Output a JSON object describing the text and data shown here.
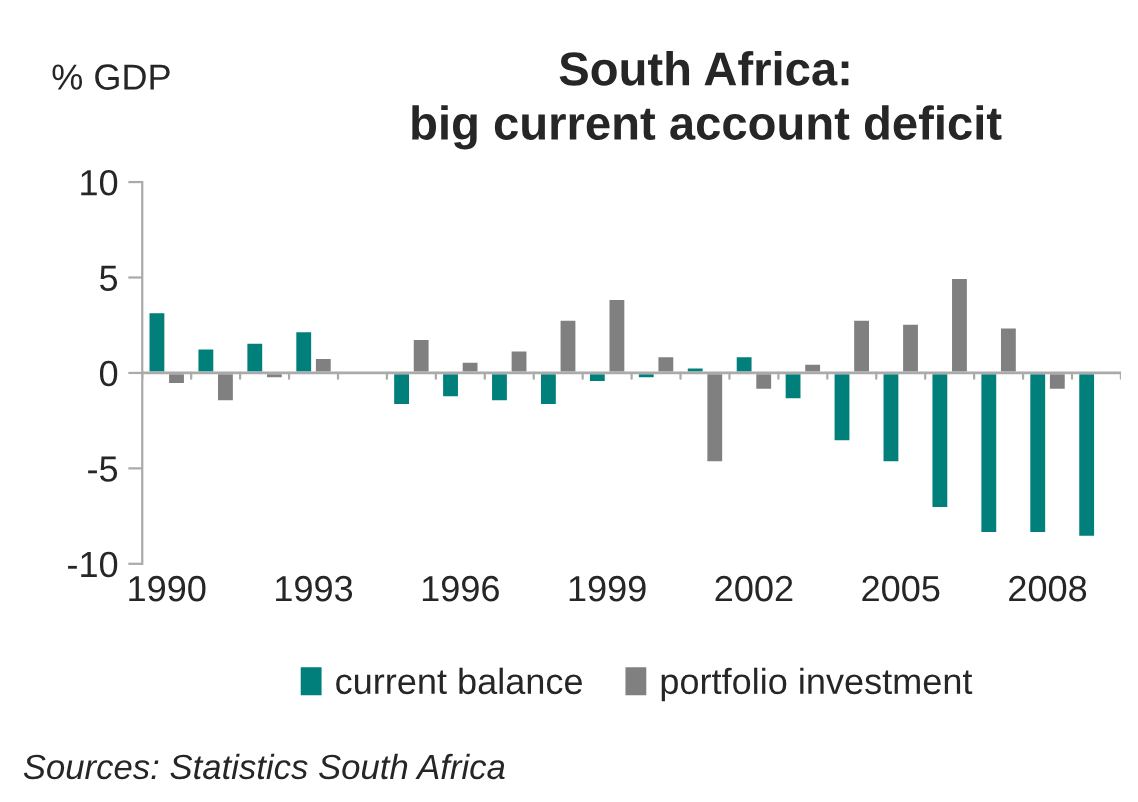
{
  "chart_data": {
    "type": "bar",
    "title": "South Africa:\nbig current account deficit",
    "ylabel": "% GDP",
    "categories": [
      "1990",
      null,
      null,
      "1993",
      null,
      null,
      "1996",
      null,
      null,
      "1999",
      null,
      null,
      "2002",
      null,
      null,
      "2005",
      null,
      null,
      "2008",
      null
    ],
    "series": [
      {
        "name": "current balance",
        "color": "#007f7b",
        "values": [
          3.2,
          1.3,
          1.6,
          2.2,
          null,
          -1.7,
          -1.3,
          -1.5,
          -1.7,
          -0.5,
          -0.3,
          0.3,
          0.9,
          -1.4,
          -3.6,
          -4.7,
          -7.1,
          -8.4,
          -8.4,
          -8.6
        ]
      },
      {
        "name": "portfolio investment",
        "color": "#808080",
        "values": [
          -0.6,
          -1.5,
          -0.3,
          0.8,
          null,
          1.8,
          0.6,
          1.2,
          2.8,
          3.9,
          0.9,
          -4.7,
          -0.9,
          0.5,
          2.8,
          2.6,
          5.0,
          2.4,
          -0.9,
          null
        ]
      }
    ],
    "ylim": [
      -10,
      10
    ],
    "yticks": [
      -10,
      -5,
      0,
      5,
      10
    ],
    "legend": "bottom",
    "annotations": [
      "Sources: Statistics South Africa"
    ]
  }
}
